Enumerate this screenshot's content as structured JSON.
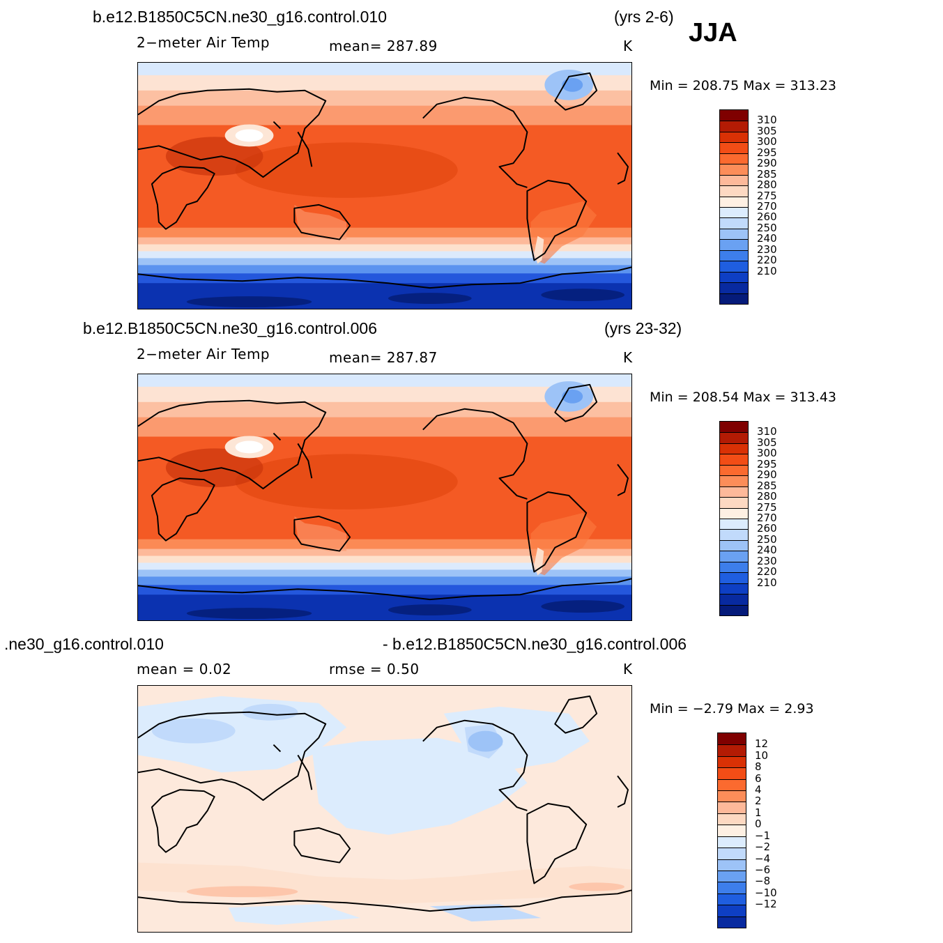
{
  "season": "JJA",
  "panels": [
    {
      "case": "b.e12.B1850C5CN.ne30_g16.control.010",
      "years": "(yrs 2-6)",
      "variable": "2−meter Air Temp",
      "stat": "mean=  287.89",
      "units": "K",
      "minmax": "Min  =  208.75  Max  =  313.23",
      "colorbar": {
        "labels": [
          "310",
          "305",
          "300",
          "295",
          "290",
          "285",
          "280",
          "275",
          "270",
          "260",
          "250",
          "240",
          "230",
          "220",
          "210"
        ],
        "colors": [
          "#7f0000",
          "#b31b04",
          "#d93105",
          "#f24d16",
          "#fb6a2f",
          "#fc8d59",
          "#fdb99a",
          "#fdd9c2",
          "#fef0e3",
          "#dcecfd",
          "#c1dafb",
          "#9dc3f7",
          "#6aa1f2",
          "#3d7eeb",
          "#1f5ee0",
          "#0e3fc4",
          "#082aa0",
          "#051b7a"
        ]
      }
    },
    {
      "case": "b.e12.B1850C5CN.ne30_g16.control.006",
      "years": "(yrs 23-32)",
      "variable": "2−meter Air Temp",
      "stat": "mean=  287.87",
      "units": "K",
      "minmax": "Min  =  208.54  Max  =  313.43",
      "colorbar": {
        "labels": [
          "310",
          "305",
          "300",
          "295",
          "290",
          "285",
          "280",
          "275",
          "270",
          "260",
          "250",
          "240",
          "230",
          "220",
          "210"
        ],
        "colors": [
          "#7f0000",
          "#b31b04",
          "#d93105",
          "#f24d16",
          "#fb6a2f",
          "#fc8d59",
          "#fdb99a",
          "#fdd9c2",
          "#fef0e3",
          "#dcecfd",
          "#c1dafb",
          "#9dc3f7",
          "#6aa1f2",
          "#3d7eeb",
          "#1f5ee0",
          "#0e3fc4",
          "#082aa0",
          "#051b7a"
        ]
      }
    },
    {
      "case_left": ".ne30_g16.control.010",
      "case_right": "- b.e12.B1850C5CN.ne30_g16.control.006",
      "stat_mean": "mean  =     0.02",
      "stat_rmse": "rmse  =     0.50",
      "units": "K",
      "minmax": "Min  =    −2.79  Max  =      2.93",
      "colorbar": {
        "labels": [
          "12",
          "10",
          "8",
          "6",
          "4",
          "2",
          "1",
          "0",
          "−1",
          "−2",
          "−4",
          "−6",
          "−8",
          "−10",
          "−12"
        ],
        "colors": [
          "#7f0000",
          "#b31b04",
          "#d93105",
          "#f24d16",
          "#fb6a2f",
          "#fc8d59",
          "#fdb99a",
          "#fdd9c2",
          "#fef0e3",
          "#dcecfd",
          "#c1dafb",
          "#9dc3f7",
          "#6aa1f2",
          "#3d7eeb",
          "#1f5ee0",
          "#0e3fc4",
          "#082aa0"
        ]
      }
    }
  ]
}
